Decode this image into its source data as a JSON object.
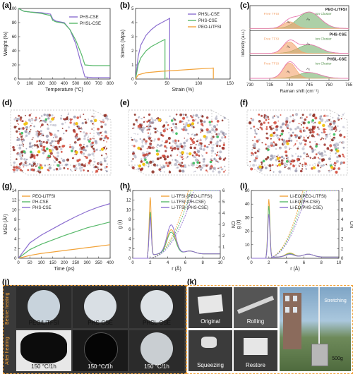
{
  "figure": {
    "panel_labels": {
      "a": "(a)",
      "b": "(b)",
      "c": "(c)",
      "d": "(d)",
      "e": "(e)",
      "f": "(f)",
      "g": "(g)",
      "h": "(h)",
      "i": "(i)",
      "j": "(j)",
      "k": "(k)"
    },
    "colors": {
      "purple": "#8c6fd0",
      "green": "#57b96a",
      "orange": "#f2a33a",
      "pink": "#e87bb0",
      "raman_green": "#6aaa5f",
      "raman_orange": "#f3a26a",
      "bg_dark": "#3a3a3a"
    }
  },
  "chart_data": [
    {
      "id": "a",
      "type": "line",
      "xlabel": "Temperature (°C)",
      "ylabel": "Weight (%)",
      "xlim": [
        0,
        800
      ],
      "ylim": [
        0,
        100
      ],
      "xticks": [
        "0",
        "100",
        "200",
        "300",
        "400",
        "500",
        "600",
        "700",
        "800"
      ],
      "yticks": [
        "0",
        "20",
        "40",
        "60",
        "80",
        "100"
      ],
      "legend": "top-right",
      "series": [
        {
          "name": "PHS-CSE",
          "color": "#8c6fd0",
          "x": [
            0,
            50,
            100,
            200,
            280,
            300,
            330,
            400,
            450,
            500,
            550,
            580,
            650,
            800
          ],
          "y": [
            100,
            96,
            95,
            94,
            92,
            85,
            82,
            80,
            70,
            50,
            20,
            3,
            2,
            2
          ]
        },
        {
          "name": "PHSL-CSE",
          "color": "#57b96a",
          "x": [
            0,
            50,
            100,
            200,
            280,
            300,
            330,
            400,
            450,
            500,
            550,
            580,
            650,
            800
          ],
          "y": [
            100,
            96,
            95,
            93,
            90,
            83,
            81,
            79,
            70,
            55,
            35,
            20,
            19,
            19
          ]
        }
      ]
    },
    {
      "id": "b",
      "type": "line",
      "xlabel": "Strain (%)",
      "ylabel": "Stress (Mpa)",
      "xlim": [
        0,
        180
      ],
      "ylim": [
        0,
        5
      ],
      "xticks": [
        "0",
        "50",
        "100",
        "150"
      ],
      "yticks": [
        "0",
        "1",
        "2",
        "3",
        "4",
        "5"
      ],
      "legend": "top-right",
      "series": [
        {
          "name": "PHSL-CSE",
          "color": "#8c6fd0",
          "x": [
            0,
            5,
            10,
            20,
            30,
            40,
            50,
            60,
            65,
            65
          ],
          "y": [
            0,
            1.6,
            2.4,
            3.1,
            3.5,
            3.8,
            4.0,
            4.2,
            4.3,
            0
          ]
        },
        {
          "name": "PHS-CSE",
          "color": "#57b96a",
          "x": [
            0,
            5,
            10,
            20,
            30,
            40,
            50,
            56,
            56
          ],
          "y": [
            0,
            1.0,
            1.5,
            2.0,
            2.3,
            2.5,
            2.7,
            2.8,
            0
          ]
        },
        {
          "name": "PEO-LiTFSI",
          "color": "#f2a33a",
          "x": [
            0,
            5,
            20,
            50,
            80,
            100,
            120,
            140,
            148,
            148
          ],
          "y": [
            0,
            0.3,
            0.45,
            0.55,
            0.62,
            0.67,
            0.72,
            0.76,
            0.78,
            0
          ]
        }
      ]
    },
    {
      "id": "c",
      "type": "area",
      "xlabel": "Raman shift (cm⁻¹)",
      "ylabel": "Intensity (a.u.)",
      "xlim": [
        730,
        755
      ],
      "xticks": [
        "730",
        "735",
        "740",
        "745",
        "750",
        "755"
      ],
      "subpanels": [
        {
          "name": "PEO-LiTFSI",
          "labels": [
            "Free TFSI",
            "Ion Cluster",
            "A₁",
            "A₂"
          ]
        },
        {
          "name": "PHS-CSE",
          "labels": [
            "Free TFSI",
            "Ion Cluster",
            "A₁",
            "A₂"
          ]
        },
        {
          "name": "PHSL-CSE",
          "labels": [
            "Free TFSI",
            "Ion Cluster",
            "A₁",
            "A₂"
          ]
        }
      ]
    },
    {
      "id": "g",
      "type": "line",
      "xlabel": "Time (ps)",
      "ylabel": "MSD (Å²)",
      "xlim": [
        0,
        400
      ],
      "ylim": [
        0,
        14
      ],
      "xticks": [
        "0",
        "50",
        "100",
        "150",
        "200",
        "250",
        "300",
        "350",
        "400"
      ],
      "yticks": [
        "0",
        "2",
        "4",
        "6",
        "8",
        "10",
        "12",
        "14"
      ],
      "legend": "top-left",
      "series": [
        {
          "name": "PEO-LiTFSI",
          "color": "#f2a33a",
          "x": [
            0,
            50,
            100,
            150,
            200,
            250,
            300,
            350,
            400
          ],
          "y": [
            0,
            0.6,
            1.0,
            1.3,
            1.6,
            1.9,
            2.2,
            2.5,
            2.8
          ]
        },
        {
          "name": "PH-CSE",
          "color": "#57b96a",
          "x": [
            0,
            50,
            100,
            150,
            200,
            250,
            300,
            350,
            400
          ],
          "y": [
            0,
            1.8,
            2.9,
            3.8,
            4.7,
            5.5,
            6.3,
            6.9,
            7.5
          ]
        },
        {
          "name": "PHS-CSE",
          "color": "#8c6fd0",
          "x": [
            0,
            50,
            100,
            150,
            200,
            250,
            300,
            350,
            400
          ],
          "y": [
            0,
            3.2,
            4.8,
            6.1,
            7.4,
            8.6,
            9.7,
            10.6,
            11.3
          ]
        }
      ]
    },
    {
      "id": "h",
      "type": "line",
      "xlabel": "r (Å)",
      "ylabel": "g (r)",
      "y2label": "CN",
      "xlim": [
        0,
        10
      ],
      "ylim": [
        0,
        14
      ],
      "xticks": [
        "0",
        "2",
        "4",
        "6",
        "8",
        "10"
      ],
      "yticks": [
        "0",
        "2",
        "4",
        "6",
        "8",
        "10",
        "12",
        "14"
      ],
      "y2ticks": [
        "0",
        "1",
        "2",
        "3",
        "4",
        "5",
        "6"
      ],
      "legend": "top-right",
      "series": [
        {
          "name": "Li-TFSI (PEO-LiTFSI)",
          "color": "#f2a33a"
        },
        {
          "name": "Li-TFSI (PH-CSE)",
          "color": "#57b96a"
        },
        {
          "name": "Li-TFSI (PHS-CSE)",
          "color": "#8c6fd0"
        }
      ]
    },
    {
      "id": "i",
      "type": "line",
      "xlabel": "r (Å)",
      "ylabel": "g (r)",
      "y2label": "CN",
      "xlim": [
        0,
        10
      ],
      "ylim": [
        0,
        50
      ],
      "xticks": [
        "0",
        "2",
        "4",
        "6",
        "8",
        "10"
      ],
      "yticks": [
        "0",
        "10",
        "20",
        "30",
        "40",
        "50"
      ],
      "y2ticks": [
        "0",
        "1",
        "2",
        "3",
        "4",
        "5",
        "6",
        "7"
      ],
      "legend": "top-right",
      "series": [
        {
          "name": "Li-EO(PEO-LiTFSI)",
          "color": "#f2a33a"
        },
        {
          "name": "Li-EO(PH-CSE)",
          "color": "#57b96a"
        },
        {
          "name": "Li-EO(PHS-CSE)",
          "color": "#8c6fd0"
        }
      ]
    }
  ],
  "photos": {
    "j": {
      "row_labels": [
        "Before heating",
        "After heating"
      ],
      "top": [
        "PEO/LiTFSI",
        "PHS-CSE",
        "PHSL-CSE"
      ],
      "bottom": [
        "150 °C/1h",
        "150 °C/1h",
        "150 °C/1h"
      ]
    },
    "k": {
      "captions": [
        "Original",
        "Rolling",
        "Squeezing",
        "Restore",
        "Stretching",
        "500g"
      ]
    }
  }
}
